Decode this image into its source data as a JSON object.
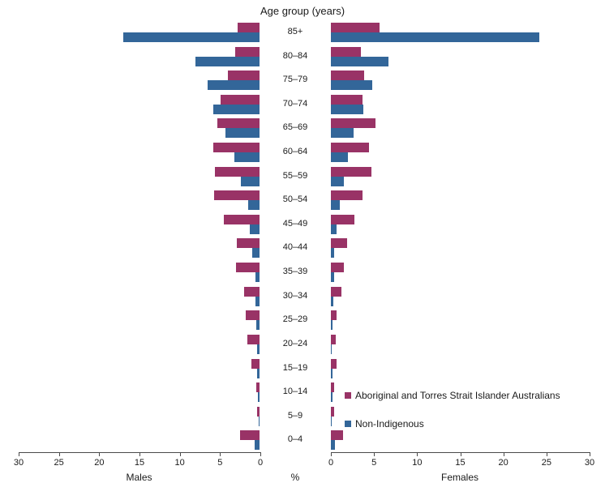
{
  "title": "Age group (years)",
  "axis": {
    "male_label": "Males",
    "female_label": "Females",
    "unit_label": "%",
    "max": 30,
    "tick_step": 5,
    "male_ticks": [
      30,
      25,
      20,
      15,
      10,
      5,
      0
    ],
    "female_ticks": [
      0,
      5,
      10,
      15,
      20,
      25,
      30
    ]
  },
  "legend": [
    {
      "label": "Aboriginal and Torres Strait Islander Australians",
      "color": "#993366"
    },
    {
      "label": "Non-Indigenous",
      "color": "#336699"
    }
  ],
  "chart_data": {
    "type": "bar",
    "subtype": "population-pyramid",
    "title": "Age group (years)",
    "unit": "%",
    "xlabel_left": "Males",
    "xlabel_right": "Females",
    "xlim": [
      0,
      30
    ],
    "grid": false,
    "legend_position": "lower-right",
    "categories_top_to_bottom": [
      "85+",
      "80–84",
      "75–79",
      "70–74",
      "65–69",
      "60–64",
      "55–59",
      "50–54",
      "45–49",
      "40–44",
      "35–39",
      "30–34",
      "25–29",
      "20–24",
      "15–19",
      "10–14",
      "5–9",
      "0–4"
    ],
    "series": [
      {
        "name": "Males – Aboriginal and Torres Strait Islander Australians",
        "side": "male",
        "color": "#993366",
        "values": [
          2.7,
          3.0,
          3.9,
          4.9,
          5.3,
          5.8,
          5.6,
          5.7,
          4.4,
          2.8,
          2.9,
          1.9,
          1.7,
          1.5,
          1.0,
          0.4,
          0.3,
          2.4
        ]
      },
      {
        "name": "Males – Non-Indigenous",
        "side": "male",
        "color": "#336699",
        "values": [
          17.0,
          8.0,
          6.5,
          5.8,
          4.2,
          3.1,
          2.3,
          1.4,
          1.2,
          0.9,
          0.5,
          0.5,
          0.4,
          0.3,
          0.3,
          0.2,
          0.1,
          0.6
        ]
      },
      {
        "name": "Females – Aboriginal and Torres Strait Islander Australians",
        "side": "female",
        "color": "#993366",
        "values": [
          5.7,
          3.5,
          3.9,
          3.7,
          5.2,
          4.4,
          4.7,
          3.7,
          2.7,
          1.9,
          1.5,
          1.2,
          0.7,
          0.6,
          0.7,
          0.4,
          0.4,
          1.4
        ]
      },
      {
        "name": "Females – Non-Indigenous",
        "side": "female",
        "color": "#336699",
        "values": [
          24.2,
          6.7,
          4.8,
          3.8,
          2.6,
          2.0,
          1.5,
          1.0,
          0.7,
          0.4,
          0.4,
          0.3,
          0.2,
          0.1,
          0.2,
          0.2,
          0.1,
          0.5
        ]
      }
    ]
  }
}
